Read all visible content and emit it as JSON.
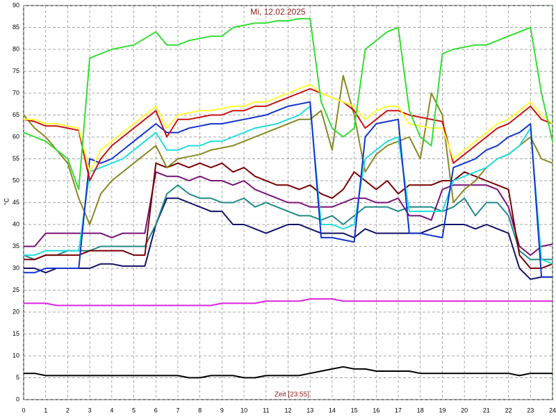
{
  "chart_data": {
    "type": "line",
    "title": "Mi, 12.02.2025",
    "xlabel": "Zeit [23:55]",
    "ylabel": "°C",
    "x": [
      0,
      0.5,
      1,
      1.5,
      2,
      2.5,
      3,
      3.5,
      4,
      4.5,
      5,
      5.5,
      6,
      6.5,
      7,
      7.5,
      8,
      8.5,
      9,
      9.5,
      10,
      10.5,
      11,
      11.5,
      12,
      12.5,
      13,
      13.5,
      14,
      14.5,
      15,
      15.5,
      16,
      16.5,
      17,
      17.5,
      18,
      18.5,
      19,
      19.5,
      20,
      20.5,
      21,
      21.5,
      22,
      22.5,
      23,
      23.5,
      24
    ],
    "xlim": [
      0,
      24
    ],
    "xticks": [
      0,
      1,
      2,
      3,
      4,
      5,
      6,
      7,
      8,
      9,
      10,
      11,
      12,
      13,
      14,
      15,
      16,
      17,
      18,
      19,
      20,
      21,
      22,
      23,
      24
    ],
    "ylim": [
      0,
      90
    ],
    "yticks": [
      0,
      5,
      10,
      15,
      20,
      25,
      30,
      35,
      40,
      45,
      50,
      55,
      60,
      65,
      70,
      75,
      80,
      85,
      90
    ],
    "grid": true,
    "series": [
      {
        "color": "#000000",
        "values": [
          6,
          6,
          5.5,
          5.5,
          5.5,
          5.5,
          5.5,
          5.5,
          5.5,
          5.5,
          5.5,
          5.5,
          5.5,
          5.5,
          5.5,
          5,
          5,
          5.5,
          5.5,
          5.5,
          5,
          5,
          5.5,
          5.5,
          5.5,
          5.5,
          6,
          6.5,
          7,
          7.5,
          7,
          7,
          6.5,
          6.5,
          6.5,
          6.5,
          6,
          6,
          6,
          6,
          6,
          6,
          6,
          6,
          6,
          5.5,
          6,
          6,
          6
        ]
      },
      {
        "color": "#dd22dd",
        "values": [
          22,
          22,
          22,
          21.5,
          21.5,
          21.5,
          21.5,
          21.5,
          21.5,
          21.5,
          21.5,
          21.5,
          21.5,
          21.5,
          21.5,
          21.5,
          21.5,
          21.5,
          22,
          22,
          22,
          22,
          22.5,
          22.5,
          22.5,
          22.5,
          23,
          23,
          23,
          22.5,
          22.5,
          22.5,
          22.5,
          22.5,
          22.5,
          22.5,
          22.5,
          22.5,
          22.5,
          22.5,
          22.5,
          22.5,
          22.5,
          22.5,
          22.5,
          22.5,
          22.5,
          22.5,
          22.5
        ]
      },
      {
        "color": "#111166",
        "values": [
          30,
          30,
          29,
          30,
          30,
          30,
          30,
          31,
          31,
          30.5,
          30.5,
          30.5,
          40,
          46,
          46,
          45,
          44,
          43,
          43,
          40,
          40,
          39,
          38,
          39,
          40,
          40,
          39,
          38,
          38,
          38,
          37,
          39,
          38,
          38,
          38,
          38,
          38,
          39,
          40,
          40,
          40,
          39,
          40,
          39,
          38,
          30,
          27.5,
          28,
          28
        ]
      },
      {
        "color": "#228888",
        "values": [
          33,
          32,
          33,
          33,
          34,
          34,
          34,
          35,
          35,
          35,
          35,
          35,
          40,
          47,
          49,
          47,
          46,
          46,
          45,
          45,
          46,
          44,
          45,
          44,
          43,
          42,
          42,
          41,
          42,
          40,
          42,
          44,
          44,
          44,
          43,
          44,
          44,
          44,
          43,
          44,
          46,
          42,
          45,
          45,
          42,
          34,
          32,
          32,
          32
        ]
      },
      {
        "color": "#771177",
        "values": [
          35,
          35,
          38,
          38,
          38,
          38,
          38,
          38,
          37,
          38,
          38,
          38,
          52,
          51,
          51,
          50,
          51,
          50,
          50,
          49,
          50,
          48,
          47,
          46,
          45,
          45,
          44,
          44,
          44,
          45,
          46,
          46,
          45,
          45,
          46,
          42,
          42,
          41,
          48,
          49,
          49,
          49,
          49,
          48,
          44,
          35,
          33,
          35,
          35.5
        ]
      },
      {
        "color": "#770000",
        "values": [
          32,
          32,
          33,
          33,
          33,
          33,
          34,
          34,
          34,
          34,
          33,
          33,
          54,
          53,
          54,
          53,
          54,
          53,
          54,
          52,
          53,
          51,
          50,
          49,
          49,
          48,
          49,
          47,
          46,
          48,
          52,
          50,
          48,
          50,
          47,
          49,
          49,
          49,
          50,
          50,
          52,
          51,
          50,
          49,
          48,
          33,
          30,
          30,
          31
        ]
      },
      {
        "color": "#888822",
        "values": [
          65,
          62,
          60,
          57,
          54,
          46,
          40,
          47,
          50,
          52,
          54,
          56,
          58,
          53,
          55,
          55.5,
          56,
          57,
          57.5,
          58,
          59,
          60,
          61,
          62,
          63,
          64,
          64,
          66,
          57,
          74,
          65,
          52,
          56,
          58,
          59,
          60,
          55,
          70,
          65,
          45,
          48,
          50,
          53,
          55,
          56,
          58,
          60,
          55,
          54
        ]
      },
      {
        "color": "#22dddd",
        "values": [
          33,
          33,
          34,
          34,
          34,
          34,
          52,
          53,
          54,
          55,
          57,
          59,
          61,
          57,
          57,
          58,
          58,
          59,
          59,
          60,
          61,
          62,
          62.5,
          63,
          64,
          65,
          67,
          40,
          40,
          39,
          40,
          55,
          57,
          59,
          60,
          43,
          43,
          43,
          43,
          50,
          51,
          52,
          53,
          55,
          56,
          58,
          62,
          32,
          31
        ]
      },
      {
        "color": "#1133cc",
        "values": [
          29,
          29,
          30,
          30,
          30,
          30,
          55,
          54,
          55,
          57,
          59,
          61,
          63,
          61,
          61,
          62,
          62.5,
          63,
          63,
          63.5,
          64,
          64.5,
          65,
          66,
          67,
          67.5,
          68,
          37,
          37,
          36.5,
          36,
          60,
          63,
          63.5,
          64,
          38,
          38,
          37.5,
          37,
          53,
          54,
          55,
          57,
          58,
          60,
          61,
          63,
          28,
          28
        ]
      },
      {
        "color": "#cc1111",
        "values": [
          64,
          63.5,
          62.5,
          62.5,
          62,
          61.5,
          50,
          55,
          58,
          60,
          62,
          64,
          66,
          60,
          64,
          64,
          64.5,
          65,
          65,
          66,
          66,
          67,
          67,
          68,
          69,
          70,
          71,
          70,
          69,
          68,
          66,
          62,
          64,
          66,
          66,
          65,
          64.5,
          64,
          63.5,
          54,
          56,
          58,
          60,
          62,
          63,
          65,
          67,
          64,
          63
        ]
      },
      {
        "color": "#ffff33",
        "values": [
          64,
          64,
          63,
          63,
          62.5,
          62,
          52,
          57,
          59,
          61,
          63,
          65,
          67,
          62,
          65,
          65.5,
          66,
          66,
          66.5,
          67,
          67,
          68,
          68,
          69,
          70,
          71,
          72,
          70,
          69,
          68,
          67,
          64,
          66,
          67,
          67,
          63,
          62.5,
          62,
          62,
          55,
          57,
          59,
          61,
          63,
          64,
          66,
          68,
          65,
          63
        ]
      },
      {
        "color": "#33dd33",
        "values": [
          61,
          60,
          59,
          57,
          55,
          48,
          78,
          79,
          80,
          80.5,
          81,
          82.5,
          84,
          81,
          81,
          82,
          82.5,
          83,
          83,
          85,
          85.5,
          86,
          86,
          86.5,
          86.5,
          87,
          87,
          68,
          62,
          60,
          62,
          80,
          82,
          84,
          85,
          66,
          60,
          58,
          79,
          80,
          80.5,
          81,
          81,
          82,
          83,
          84,
          85,
          70,
          59
        ]
      }
    ]
  }
}
